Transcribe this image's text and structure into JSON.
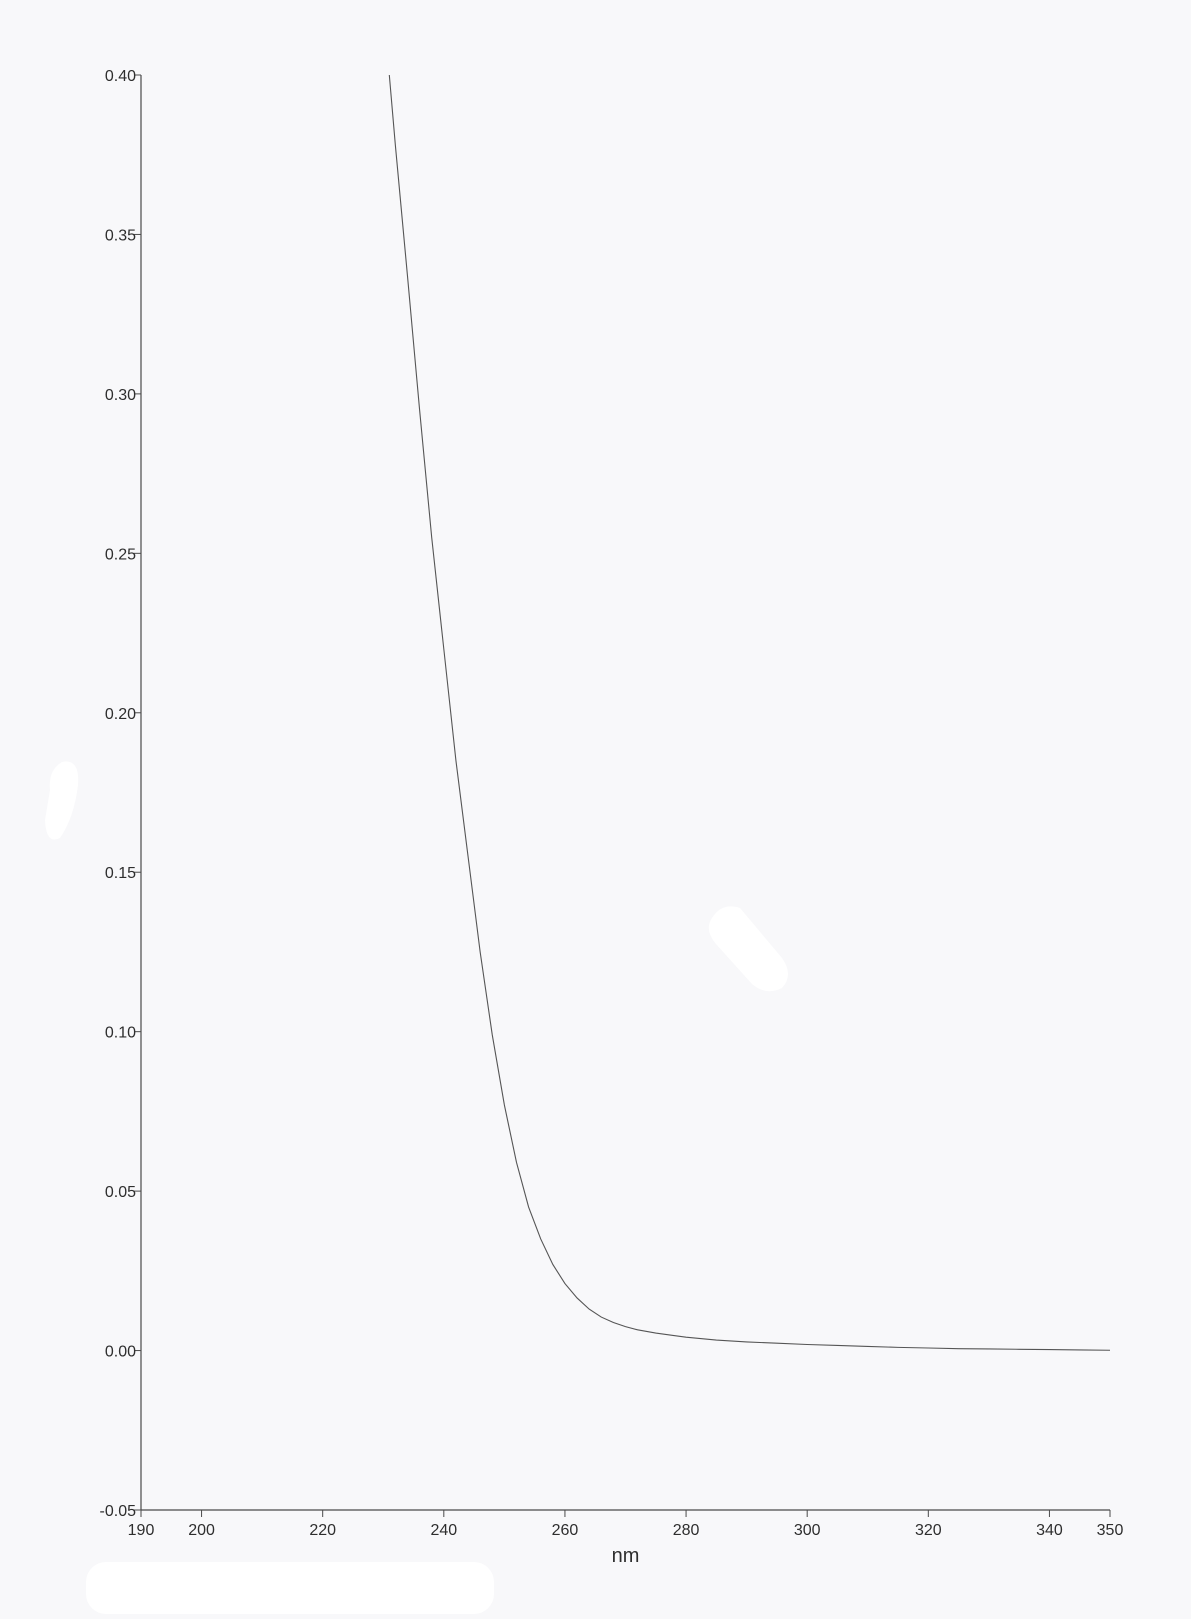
{
  "chart_data": {
    "type": "line",
    "title": "",
    "xlabel": "nm",
    "ylabel": "",
    "xlim": [
      190,
      350
    ],
    "ylim": [
      -0.05,
      0.4
    ],
    "grid": false,
    "x_ticks": [
      190,
      200,
      220,
      240,
      260,
      280,
      300,
      320,
      340,
      350
    ],
    "x_tick_labels": [
      "190",
      "200",
      "220",
      "240",
      "260",
      "280",
      "300",
      "320",
      "340",
      "350"
    ],
    "y_ticks": [
      -0.05,
      0.0,
      0.05,
      0.1,
      0.15,
      0.2,
      0.25,
      0.3,
      0.35,
      0.4
    ],
    "y_tick_labels": [
      "-0.05",
      "0.00",
      "0.05",
      "0.10",
      "0.15",
      "0.20",
      "0.25",
      "0.30",
      "0.35",
      "0.40"
    ],
    "series": [
      {
        "color": "#555555",
        "x": [
          231.0,
          232,
          234,
          236,
          238,
          240,
          242,
          244,
          246,
          248,
          250,
          252,
          254,
          256,
          258,
          260,
          262,
          264,
          266,
          268,
          270,
          272,
          275,
          278,
          280,
          285,
          290,
          295,
          300,
          305,
          310,
          315,
          320,
          325,
          330,
          335,
          340,
          345,
          350
        ],
        "y": [
          0.4,
          0.378,
          0.337,
          0.295,
          0.255,
          0.22,
          0.185,
          0.155,
          0.125,
          0.099,
          0.077,
          0.059,
          0.045,
          0.035,
          0.027,
          0.021,
          0.0165,
          0.013,
          0.0105,
          0.0088,
          0.0075,
          0.0065,
          0.0055,
          0.0047,
          0.0042,
          0.0033,
          0.0027,
          0.0023,
          0.0019,
          0.0016,
          0.0013,
          0.001,
          0.0008,
          0.0006,
          0.0005,
          0.0004,
          0.0003,
          0.0002,
          0.0001
        ]
      }
    ]
  }
}
